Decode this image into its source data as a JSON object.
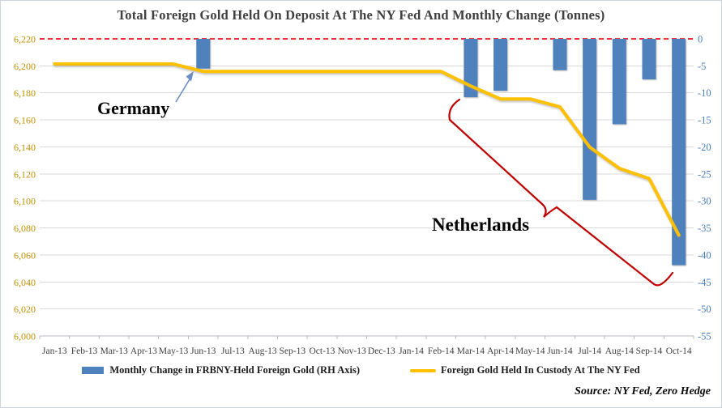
{
  "title": "Total Foreign Gold Held On Deposit At The NY Fed And Monthly Change (Tonnes)",
  "source": "Source: NY Fed, Zero Hedge",
  "legend": [
    {
      "label": "Monthly Change in FRBNY-Held Foreign Gold (RH Axis)",
      "swatch": "bar"
    },
    {
      "label": "Foreign Gold Held In Custody At The NY Fed",
      "swatch": "line"
    }
  ],
  "annotations": {
    "germany": "Germany",
    "netherlands": "Netherlands"
  },
  "colors": {
    "bar": "#4f81bd",
    "line": "#ffc000",
    "zero_line": "#f53030",
    "annotation": "#c00000",
    "arrow": "#6b8ec4",
    "left_axis": "#bf8f00",
    "right_axis": "#4a7fc1",
    "x_axis": "#3f3f3f",
    "grid": "#d9d9d9"
  },
  "chart_data": {
    "type": "combo-bar-line",
    "title": "Total Foreign Gold Held On Deposit At The NY Fed And Monthly Change (Tonnes)",
    "grid": true,
    "legend_position": "bottom",
    "categories": [
      "Jan-13",
      "Feb-13",
      "Mar-13",
      "Apr-13",
      "May-13",
      "Jun-13",
      "Jul-13",
      "Aug-13",
      "Sep-13",
      "Oct-13",
      "Nov-13",
      "Dec-13",
      "Jan-14",
      "Feb-14",
      "Mar-14",
      "Apr-14",
      "May-14",
      "Jun-14",
      "Jul-14",
      "Aug-14",
      "Sep-14",
      "Oct-14"
    ],
    "series": [
      {
        "name": "Monthly Change in FRBNY-Held Foreign Gold (RH Axis)",
        "type": "bar",
        "axis": "right",
        "values": [
          null,
          null,
          null,
          null,
          null,
          -5.5,
          null,
          null,
          null,
          null,
          null,
          null,
          null,
          null,
          -10.8,
          -9.6,
          null,
          -5.8,
          -29.8,
          -15.8,
          -7.5,
          -41.9
        ]
      },
      {
        "name": "Foreign Gold Held In Custody At The NY Fed",
        "type": "line",
        "axis": "left",
        "values": [
          6201.4,
          6201.4,
          6201.4,
          6201.4,
          6201.4,
          6195.9,
          6195.9,
          6195.9,
          6195.9,
          6195.9,
          6195.9,
          6195.9,
          6195.9,
          6195.9,
          6185.1,
          6175.5,
          6175.5,
          6169.7,
          6139.9,
          6124.1,
          6116.6,
          6074.7
        ]
      }
    ],
    "left_axis": {
      "min": 6000,
      "max": 6220,
      "step": 20,
      "ticks": [
        "6,220",
        "6,200",
        "6,180",
        "6,160",
        "6,140",
        "6,120",
        "6,100",
        "6,080",
        "6,060",
        "6,040",
        "6,020",
        "6,000"
      ]
    },
    "right_axis": {
      "min": -55,
      "max": 0,
      "step": 5,
      "ticks": [
        "0",
        "-5",
        "-10",
        "-15",
        "-20",
        "-25",
        "-30",
        "-35",
        "-40",
        "-45",
        "-50",
        "-55"
      ]
    },
    "zero_line": {
      "value": 0,
      "style": "dashed-red"
    }
  }
}
